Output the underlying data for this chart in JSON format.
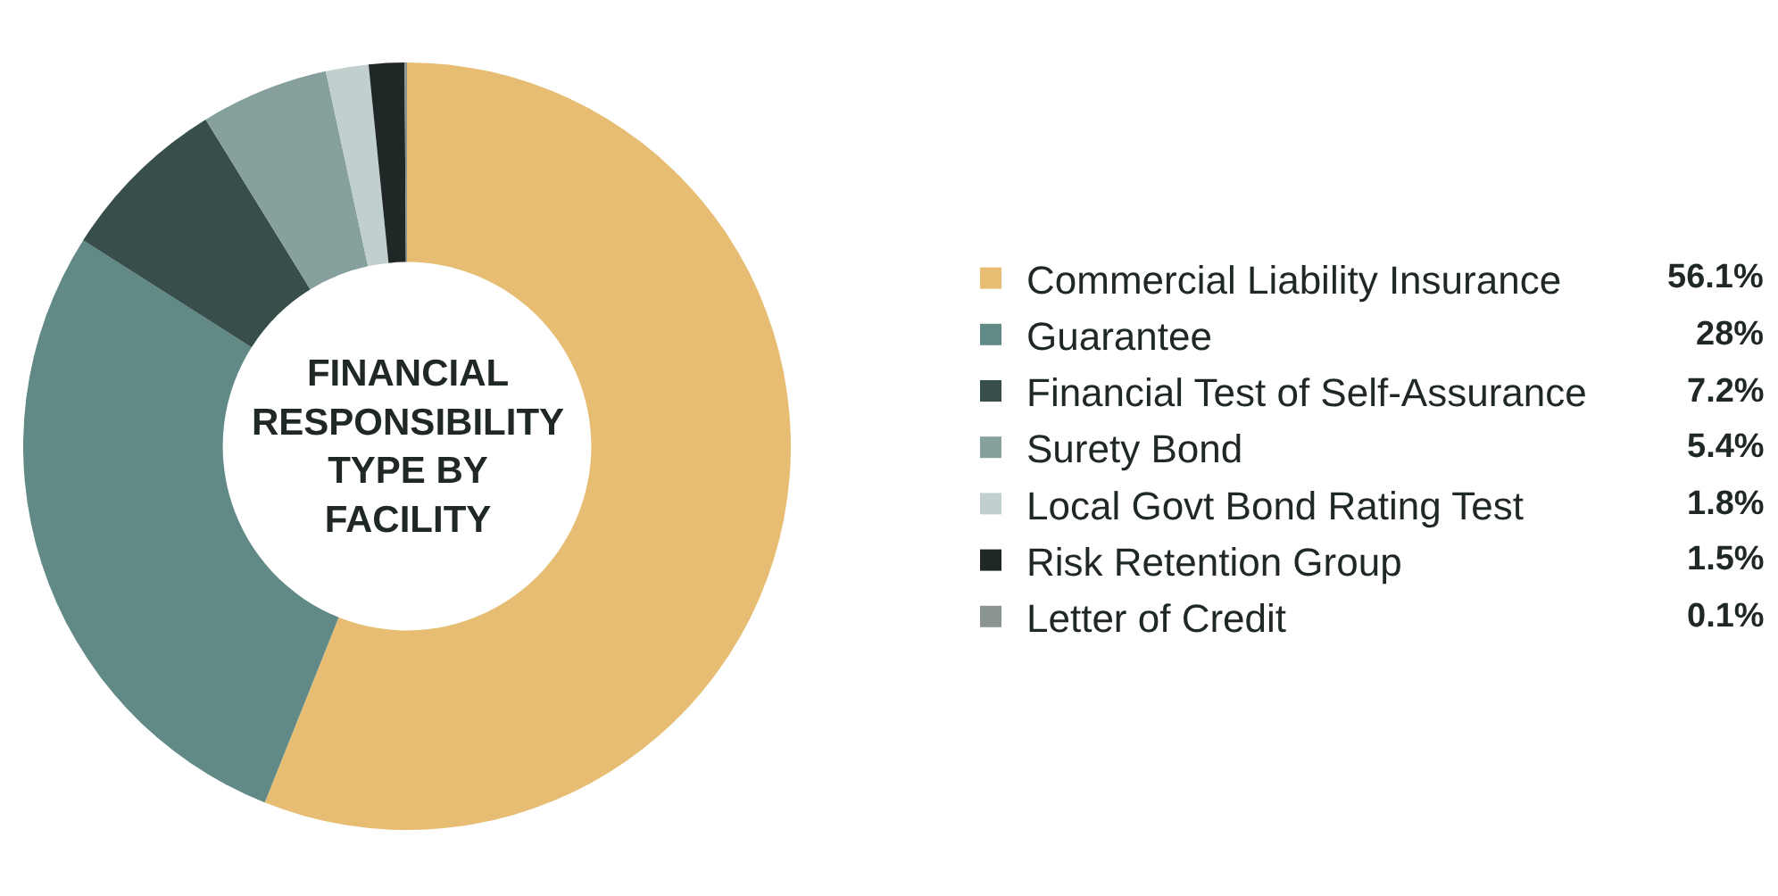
{
  "chart_data": {
    "type": "donut",
    "title": "FINANCIAL RESPONSIBILITY TYPE BY FACILITY",
    "categories": [
      "Commercial Liability Insurance",
      "Guarantee",
      "Financial Test of Self-Assurance",
      "Surety Bond",
      "Local Govt Bond Rating Test",
      "Risk Retention Group",
      "Letter of Credit"
    ],
    "values": [
      56.1,
      28,
      7.2,
      5.4,
      1.8,
      1.5,
      0.1
    ],
    "colors": [
      "#e6bd72",
      "#618a86",
      "#374e4b",
      "#86a09e",
      "#c1cfce",
      "#1f2826",
      "#8a9592"
    ],
    "value_labels": [
      "56.1%",
      "28%",
      "7.2%",
      "5.4%",
      "1.8%",
      "1.5%",
      "0.1%"
    ],
    "legend": "right"
  }
}
